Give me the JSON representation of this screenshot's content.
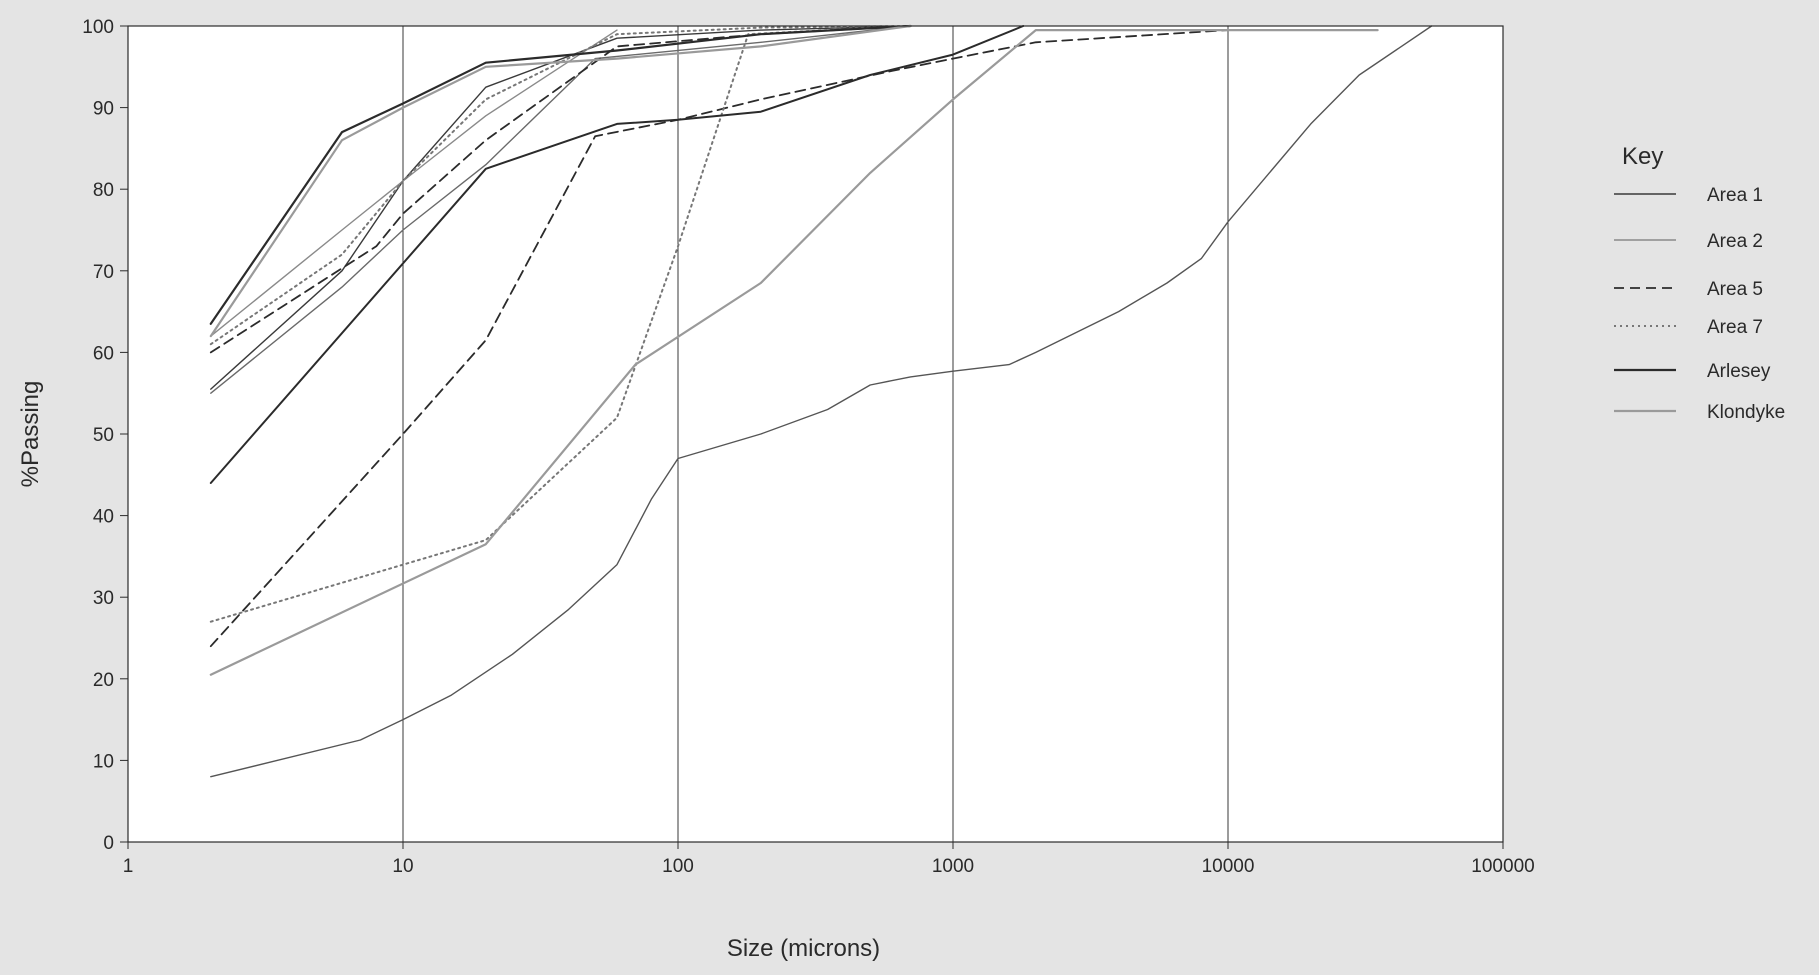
{
  "chart_data": {
    "type": "line",
    "title": "",
    "xlabel": "Size (microns)",
    "ylabel": "%Passing",
    "xscale": "log",
    "xlim": [
      1,
      100000
    ],
    "ylim": [
      0,
      100
    ],
    "x_tick_labels": [
      "1",
      "10",
      "100",
      "1000",
      "10000",
      "100000"
    ],
    "y_tick_labels": [
      "0",
      "10",
      "20",
      "30",
      "40",
      "50",
      "60",
      "70",
      "80",
      "90",
      "100"
    ],
    "grid": "vertical lines at decades",
    "legend": {
      "title": "Key",
      "placement": "right",
      "entries": [
        "Area 1",
        "Area 2",
        "Area 5",
        "Area 7",
        "Arlesey",
        "Klondyke"
      ]
    },
    "colors": {
      "background": "#e4e4e4",
      "plot_background": "#ffffff",
      "dark": "#2b2b2b",
      "mid": "#555555",
      "light": "#9a9a9a"
    },
    "series": [
      {
        "name": "Area 1",
        "color": "#3a3a3a",
        "dash": "solid",
        "width": 1.4,
        "points": [
          [
            2,
            55.5
          ],
          [
            6,
            70
          ],
          [
            10,
            81
          ],
          [
            20,
            92.5
          ],
          [
            60,
            98.5
          ],
          [
            200,
            99.5
          ],
          [
            700,
            100
          ]
        ]
      },
      {
        "name": "Area 1",
        "color": "#555555",
        "dash": "solid",
        "width": 1.4,
        "points": [
          [
            2,
            8
          ],
          [
            7,
            12.5
          ],
          [
            10,
            15
          ],
          [
            15,
            18
          ],
          [
            25,
            23
          ],
          [
            40,
            28.5
          ],
          [
            60,
            34
          ],
          [
            80,
            42
          ],
          [
            100,
            47
          ],
          [
            200,
            50
          ],
          [
            350,
            53
          ],
          [
            500,
            56
          ],
          [
            700,
            57
          ],
          [
            1000,
            57.7
          ],
          [
            1600,
            58.5
          ],
          [
            2000,
            60
          ],
          [
            4000,
            65
          ],
          [
            6000,
            68.5
          ],
          [
            8000,
            71.5
          ],
          [
            10000,
            76
          ],
          [
            20000,
            88
          ],
          [
            30000,
            94
          ],
          [
            55000,
            100
          ]
        ]
      },
      {
        "name": "Area 2",
        "color": "#8a8a8a",
        "dash": "solid",
        "width": 1.4,
        "points": [
          [
            2,
            62
          ],
          [
            6,
            75
          ],
          [
            10,
            81
          ],
          [
            20,
            89
          ],
          [
            60,
            99.5
          ]
        ]
      },
      {
        "name": "Area 2",
        "color": "#6a6a6a",
        "dash": "solid",
        "width": 1.4,
        "points": [
          [
            2,
            55
          ],
          [
            6,
            68
          ],
          [
            10,
            75
          ],
          [
            20,
            83
          ],
          [
            50,
            96
          ],
          [
            200,
            98
          ],
          [
            700,
            100
          ]
        ]
      },
      {
        "name": "Area 5",
        "color": "#2b2b2b",
        "dash": "dashed",
        "width": 1.8,
        "points": [
          [
            2,
            60
          ],
          [
            8,
            73
          ],
          [
            10,
            77
          ],
          [
            20,
            86
          ],
          [
            60,
            97.5
          ],
          [
            200,
            99
          ],
          [
            700,
            100
          ]
        ]
      },
      {
        "name": "Area 5",
        "color": "#2b2b2b",
        "dash": "dashed",
        "width": 1.8,
        "points": [
          [
            2,
            24
          ],
          [
            10,
            50
          ],
          [
            20,
            61.5
          ],
          [
            50,
            86.5
          ],
          [
            100,
            88.5
          ],
          [
            200,
            91
          ],
          [
            600,
            94.5
          ],
          [
            1000,
            96
          ],
          [
            2000,
            98
          ],
          [
            10000,
            99.5
          ],
          [
            35000,
            99.5
          ]
        ]
      },
      {
        "name": "Area 7",
        "color": "#777777",
        "dash": "dotted",
        "width": 2,
        "points": [
          [
            2,
            61
          ],
          [
            6,
            72
          ],
          [
            10,
            81
          ],
          [
            20,
            91
          ],
          [
            60,
            99
          ],
          [
            200,
            99.8
          ],
          [
            700,
            100
          ]
        ]
      },
      {
        "name": "Area 7",
        "color": "#777777",
        "dash": "dotted",
        "width": 2,
        "points": [
          [
            2,
            27
          ],
          [
            20,
            37
          ],
          [
            60,
            52
          ],
          [
            100,
            73
          ],
          [
            180,
            99
          ],
          [
            700,
            100
          ]
        ]
      },
      {
        "name": "Arlesey",
        "color": "#2b2b2b",
        "dash": "solid",
        "width": 2.2,
        "points": [
          [
            2,
            63.5
          ],
          [
            6,
            87
          ],
          [
            10,
            90.5
          ],
          [
            20,
            95.5
          ],
          [
            60,
            97
          ],
          [
            200,
            99
          ],
          [
            700,
            100
          ]
        ]
      },
      {
        "name": "Arlesey",
        "color": "#2b2b2b",
        "dash": "solid",
        "width": 2,
        "points": [
          [
            2,
            44
          ],
          [
            20,
            82.5
          ],
          [
            60,
            88
          ],
          [
            100,
            88.5
          ],
          [
            200,
            89.5
          ],
          [
            500,
            94
          ],
          [
            1000,
            96.5
          ],
          [
            1800,
            100
          ]
        ]
      },
      {
        "name": "Klondyke",
        "color": "#9a9a9a",
        "dash": "solid",
        "width": 2.2,
        "points": [
          [
            2,
            62
          ],
          [
            6,
            86
          ],
          [
            10,
            90
          ],
          [
            20,
            95
          ],
          [
            60,
            96
          ],
          [
            200,
            97.5
          ],
          [
            700,
            100
          ]
        ]
      },
      {
        "name": "Klondyke",
        "color": "#9a9a9a",
        "dash": "solid",
        "width": 2.2,
        "points": [
          [
            2,
            20.5
          ],
          [
            20,
            36.5
          ],
          [
            70,
            58.5
          ],
          [
            200,
            68.5
          ],
          [
            500,
            82
          ],
          [
            1000,
            91
          ],
          [
            2000,
            99.5
          ],
          [
            35000,
            99.5
          ]
        ]
      }
    ]
  }
}
